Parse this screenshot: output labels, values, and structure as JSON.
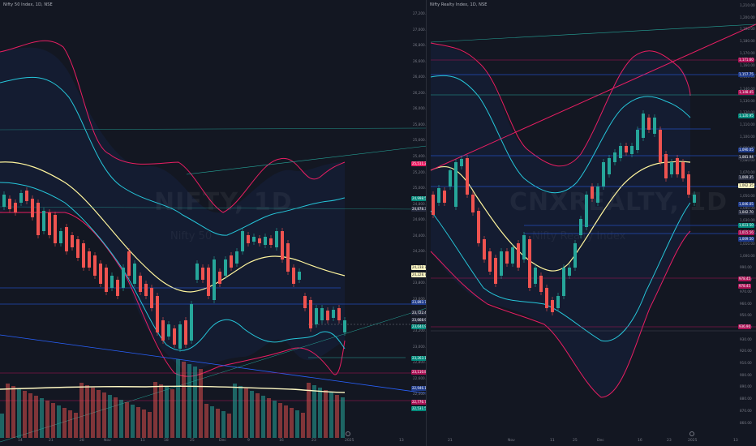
{
  "left_chart": {
    "title": "Nifty 50 Index, 1D, NSE",
    "watermark": "NIFTY, 1D",
    "watermark_sub": "Nifty 50",
    "y_axis": [
      "27,200.00",
      "27,000.00",
      "26,800.00",
      "26,600.00",
      "26,400.00",
      "26,200.00",
      "26,000.00",
      "25,800.00",
      "25,600.00",
      "25,400.00",
      "25,200.00",
      "25,000.00",
      "24,800.00",
      "24,600.00",
      "24,400.00",
      "24,200.00",
      "24,000.00",
      "23,800.00",
      "23,600.00",
      "23,400.00",
      "23,200.00",
      "23,000.00",
      "22,800.00",
      "22,600.00",
      "22,400.00"
    ],
    "x_axis": [
      "14",
      "21",
      "28",
      "Nov",
      "11",
      "18",
      "25",
      "Dec",
      "9",
      "16",
      "23",
      "2025",
      "13"
    ],
    "badges": [
      {
        "text": "25,511.22",
        "color": "#e91e63"
      },
      {
        "text": "24,998.56",
        "color": "#00897b"
      },
      {
        "text": "24,878.30",
        "color": "#262b3e"
      },
      {
        "text": "24,238.77",
        "color": "#fff9c4"
      },
      {
        "text": "24,228.77",
        "color": "#fff9c4"
      },
      {
        "text": "23,893.70",
        "color": "#1e3a8a"
      },
      {
        "text": "23,722.40",
        "color": "#262b3e"
      },
      {
        "text": "23,668.90",
        "color": "#262b3e"
      },
      {
        "text": "23,644.90",
        "color": "#00897b"
      },
      {
        "text": "23,263.15",
        "color": "#00897b"
      },
      {
        "text": "23,110.80",
        "color": "#ad1457"
      },
      {
        "text": "22,946.10",
        "color": "#1e3a8a"
      },
      {
        "text": "22,776.70",
        "color": "#ad1457"
      },
      {
        "text": "22,531.50",
        "color": "#00897b"
      }
    ]
  },
  "right_chart": {
    "title": "Nifty Realty Index, 1D, NSE",
    "watermark": "CNXREALTY, 1D",
    "watermark_sub": "Nifty Realty Index",
    "y_axis": [
      "1,210.00",
      "1,200.00",
      "1,190.00",
      "1,180.00",
      "1,170.00",
      "1,160.00",
      "1,150.00",
      "1,140.00",
      "1,130.00",
      "1,120.00",
      "1,110.00",
      "1,100.00",
      "1,090.00",
      "1,080.00",
      "1,070.00",
      "1,060.00",
      "1,050.00",
      "1,040.00",
      "1,030.00",
      "1,020.00",
      "1,010.00",
      "1,000.00",
      "990.00",
      "980.00",
      "970.00",
      "960.00",
      "950.00",
      "940.00",
      "930.00",
      "920.00",
      "910.00",
      "900.00",
      "890.00",
      "880.00",
      "870.00",
      "860.00"
    ],
    "x_axis": [
      "21",
      "Nov",
      "11",
      "25",
      "Dec",
      "16",
      "23",
      "2025",
      "13"
    ],
    "badges": [
      {
        "text": "1,171.60",
        "color": "#ad1457"
      },
      {
        "text": "1,157.75",
        "color": "#1e3a8a"
      },
      {
        "text": "1,148.45",
        "color": "#ad1457"
      },
      {
        "text": "1,120.95",
        "color": "#00897b"
      },
      {
        "text": "1,090.05",
        "color": "#1e3a8a"
      },
      {
        "text": "1,081.94",
        "color": "#262b3e"
      },
      {
        "text": "1,069.35",
        "color": "#262b3e"
      },
      {
        "text": "1,062.35",
        "color": "#fff9c4"
      },
      {
        "text": "1,046.05",
        "color": "#1e3a8a"
      },
      {
        "text": "1,042.70",
        "color": "#262b3e"
      },
      {
        "text": "1,023.50",
        "color": "#00897b"
      },
      {
        "text": "1,015.56",
        "color": "#ad1457"
      },
      {
        "text": "1,009.50",
        "color": "#1e3a8a"
      },
      {
        "text": "978.45",
        "color": "#ad1457"
      },
      {
        "text": "978.45",
        "color": "#ad1457"
      },
      {
        "text": "936.90",
        "color": "#ad1457"
      }
    ]
  },
  "colors": {
    "bg": "#131722",
    "up": "#26a69a",
    "down": "#ef5350",
    "band_outer": "#e91e63",
    "band_inner": "#26c6da",
    "mid": "#fff59d",
    "level": "#2962ff",
    "level_red": "#ad1457"
  }
}
